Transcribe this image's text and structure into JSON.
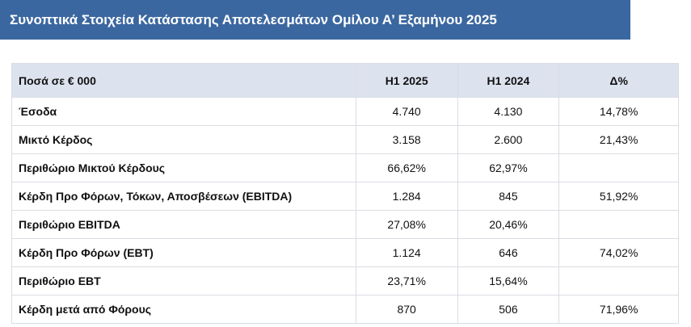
{
  "header": {
    "title": "Συνοπτικά Στοιχεία Κατάστασης Αποτελεσμάτων Ομίλου Α’ Εξαμήνου 2025"
  },
  "table": {
    "columns": [
      "Ποσά σε € 000",
      "H1 2025",
      "H1 2024",
      "Δ%"
    ],
    "rows": [
      [
        "Έσοδα",
        "4.740",
        "4.130",
        "14,78%"
      ],
      [
        "Μικτό Κέρδος",
        "3.158",
        "2.600",
        "21,43%"
      ],
      [
        "Περιθώριο Μικτού Κέρδους",
        "66,62%",
        "62,97%",
        null
      ],
      [
        "Κέρδη Προ Φόρων, Τόκων, Αποσβέσεων (EBITDA)",
        "1.284",
        "845",
        "51,92%"
      ],
      [
        "Περιθώριο EBITDA",
        "27,08%",
        "20,46%",
        null
      ],
      [
        "Κέρδη Προ Φόρων (EBT)",
        "1.124",
        "646",
        "74,02%"
      ],
      [
        "Περιθώριο EBT",
        "23,71%",
        "15,64%",
        null
      ],
      [
        "Κέρδη μετά από Φόρους",
        "870",
        "506",
        "71,96%"
      ]
    ]
  }
}
